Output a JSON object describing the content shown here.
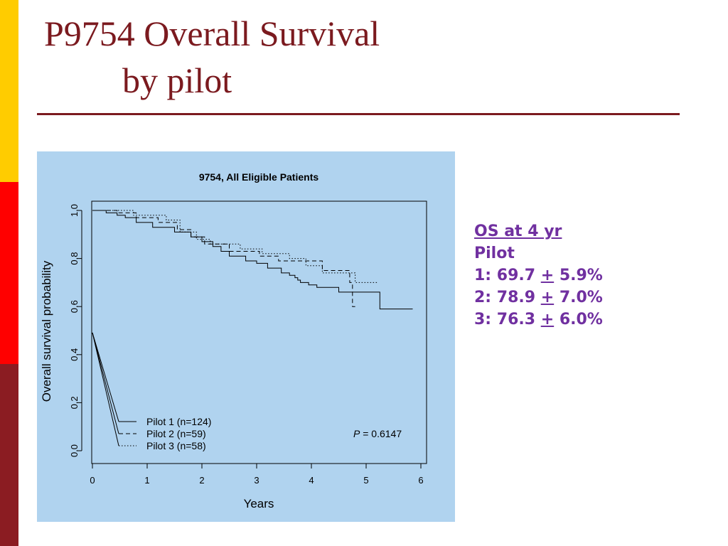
{
  "slide": {
    "title_line1": "P9754 Overall Survival",
    "title_line2": "by pilot",
    "colors": {
      "title": "#7b1a1f",
      "side_bar": [
        "#ffcc00",
        "#ff0000",
        "#8b1c22"
      ],
      "panel": "#b0d3ef",
      "stats_text": "#7030a0"
    }
  },
  "os_box": {
    "heading": "OS at 4 yr",
    "subheading": "Pilot",
    "rows": [
      {
        "label": "1: 69.7 ",
        "pm": "+",
        "value": " 5.9%"
      },
      {
        "label": "2: 78.9 ",
        "pm": "+",
        "value": " 7.0%"
      },
      {
        "label": "3: 76.3 ",
        "pm": "+",
        "value": " 6.0%"
      }
    ]
  },
  "chart_data": {
    "type": "line",
    "subtype": "kaplan-meier step curves",
    "title": "9754, All Eligible Patients",
    "xlabel": "Years",
    "ylabel": "Overall survival probability",
    "xlim": [
      0,
      6
    ],
    "ylim": [
      0,
      1
    ],
    "xticks": [
      "0",
      "1",
      "2",
      "3",
      "4",
      "5",
      "6"
    ],
    "yticks": [
      "0.0",
      "0.2",
      "0.4",
      "0.6",
      "0.8",
      "1.0"
    ],
    "grid": false,
    "legend": "bottom-left",
    "annotation": {
      "italic": "P",
      "text": " = 0.6147"
    },
    "series": [
      {
        "name": "Pilot 1 (n=124)",
        "style": "solid",
        "x": [
          0,
          0.25,
          0.45,
          0.6,
          0.8,
          1.1,
          1.5,
          1.8,
          2.0,
          2.2,
          2.35,
          2.5,
          2.8,
          3.0,
          3.2,
          3.45,
          3.6,
          3.7,
          3.75,
          3.8,
          3.95,
          4.1,
          4.5,
          5.25,
          5.85
        ],
        "y": [
          1.0,
          0.99,
          0.98,
          0.97,
          0.95,
          0.93,
          0.91,
          0.89,
          0.87,
          0.85,
          0.83,
          0.81,
          0.79,
          0.78,
          0.76,
          0.74,
          0.73,
          0.72,
          0.71,
          0.7,
          0.69,
          0.68,
          0.66,
          0.59,
          0.59
        ]
      },
      {
        "name": "Pilot 2 (n=59)",
        "style": "dashed",
        "x": [
          0,
          0.45,
          0.8,
          1.2,
          1.55,
          1.8,
          2.05,
          2.5,
          3.05,
          3.4,
          4.2,
          4.7,
          4.75,
          4.8
        ],
        "y": [
          1.0,
          0.99,
          0.97,
          0.95,
          0.92,
          0.89,
          0.86,
          0.83,
          0.81,
          0.79,
          0.75,
          0.7,
          0.6,
          0.6
        ]
      },
      {
        "name": "Pilot 3 (n=58)",
        "style": "dotted",
        "x": [
          0,
          0.75,
          1.35,
          1.6,
          1.9,
          2.15,
          2.7,
          3.1,
          3.6,
          3.9,
          4.2,
          4.8,
          5.2
        ],
        "y": [
          1.0,
          0.98,
          0.96,
          0.91,
          0.88,
          0.86,
          0.84,
          0.82,
          0.8,
          0.77,
          0.74,
          0.7,
          0.7
        ]
      }
    ]
  }
}
